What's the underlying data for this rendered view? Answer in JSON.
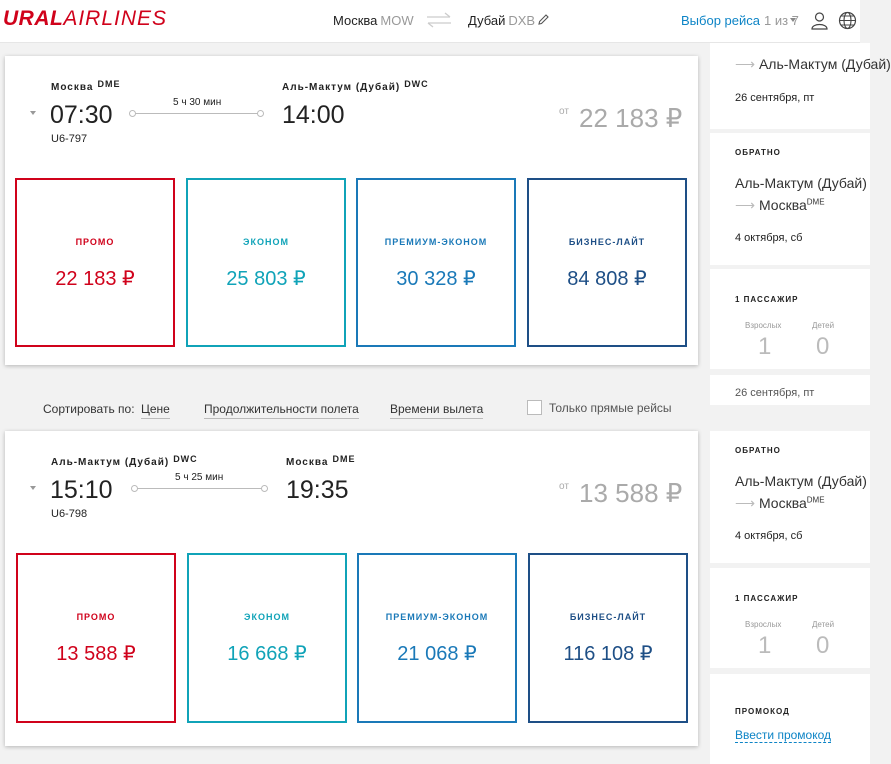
{
  "header": {
    "logo_bold": "URAL",
    "logo_thin": "AIRLINES",
    "origin_city": "Москва",
    "origin_code": "MOW",
    "dest_city": "Дубай",
    "dest_code": "DXB",
    "select_flight_label": "Выбор рейса",
    "select_flight_count": "1 из 7"
  },
  "flights": [
    {
      "dep_city": "Москва",
      "dep_code": "DME",
      "dep_time": "07:30",
      "flight_no": "U6-797",
      "duration": "5 ч 30 мин",
      "arr_city": "Аль-Мактум (Дубай)",
      "arr_code": "DWC",
      "arr_time": "14:00",
      "from_label": "от",
      "from_price": "22 183 ₽",
      "fares": [
        {
          "name": "ПРОМО",
          "price": "22 183 ₽"
        },
        {
          "name": "ЭКОНОМ",
          "price": "25 803 ₽"
        },
        {
          "name": "ПРЕМИУМ-ЭКОНОМ",
          "price": "30 328 ₽"
        },
        {
          "name": "БИЗНЕС-ЛАЙТ",
          "price": "84 808 ₽"
        }
      ]
    },
    {
      "dep_city": "Аль-Мактум (Дубай)",
      "dep_code": "DWC",
      "dep_time": "15:10",
      "flight_no": "U6-798",
      "duration": "5 ч 25 мин",
      "arr_city": "Москва",
      "arr_code": "DME",
      "arr_time": "19:35",
      "from_label": "от",
      "from_price": "13 588 ₽",
      "fares": [
        {
          "name": "ПРОМО",
          "price": "13 588 ₽"
        },
        {
          "name": "ЭКОНОМ",
          "price": "16 668 ₽"
        },
        {
          "name": "ПРЕМИУМ-ЭКОНОМ",
          "price": "21 068 ₽"
        },
        {
          "name": "БИЗНЕС-ЛАЙТ",
          "price": "116 108 ₽"
        }
      ]
    }
  ],
  "sort": {
    "label": "Сортировать по:",
    "options": [
      "Цене",
      "Продолжительности полета",
      "Времени вылета"
    ],
    "direct_only": "Только прямые рейсы"
  },
  "sidebar": {
    "top": {
      "city": "Аль-Мактум (Дубай)",
      "date": "26 сентября, пт"
    },
    "back_header": "ОБРАТНО",
    "back_city": "Аль-Мактум (Дубай)",
    "back_dest": "Москва",
    "back_dest_code": "DME",
    "back_date": "4 октября, сб",
    "pax_header": "1 ПАССАЖИР",
    "adults_label": "Взрослых",
    "adults_value": "1",
    "children_label": "Детей",
    "children_value": "0",
    "cut_date": "26 сентября, пт",
    "promo_header": "ПРОМОКОД",
    "promo_link": "Ввести промокод"
  },
  "colors": {
    "brand_red": "#d0021b",
    "promo": "#d0021b",
    "econom": "#10a3b8",
    "premium": "#1a79b8",
    "business": "#1e4f86",
    "link": "#0d84c6"
  }
}
